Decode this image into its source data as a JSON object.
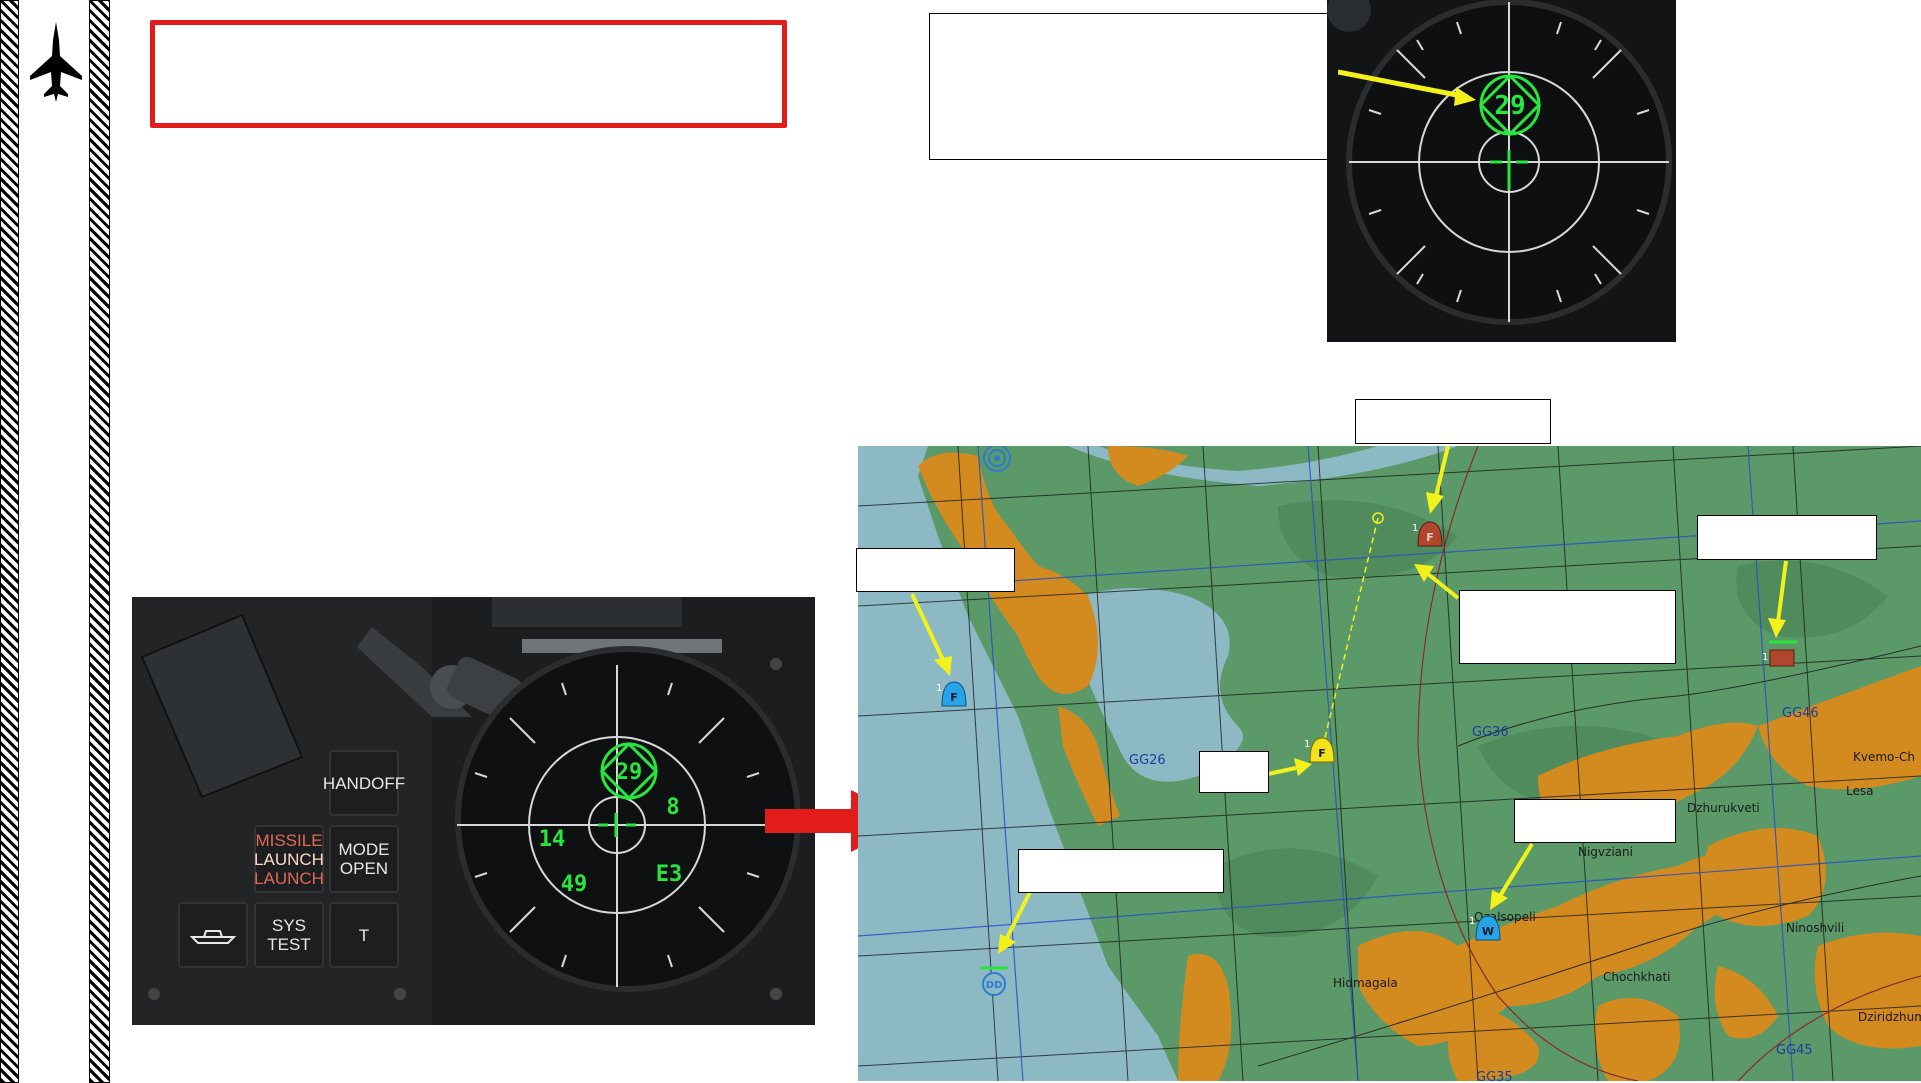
{
  "sidebar": {
    "logo_icon": "jet-silhouette-icon"
  },
  "panel": {
    "buttons": {
      "handoff": "HANDOFF",
      "missile_launch_line1": "MISSILE",
      "missile_launch_line2": "LAUNCH",
      "missile_launch_line3": "LAUNCH",
      "mode_line1": "MODE",
      "mode_line2": "OPEN",
      "ship_icon": "ship-icon",
      "sys_test": "SYS TEST",
      "t": "T"
    },
    "rwr_symbols": {
      "center_threat": "29",
      "s8": "8",
      "s14": "14",
      "s49": "49",
      "sE3": "E3"
    }
  },
  "rwr_zoom": {
    "threat": "29"
  },
  "map": {
    "grid_labels": {
      "gg26": "GG26",
      "gg36": "GG36",
      "gg46": "GG46",
      "gg45": "GG45",
      "gg35": "GG35"
    },
    "towns": {
      "kvemo": "Kvemo-Ch",
      "lesa": "Lesa",
      "dzhurukveti": "Dzhurukveti",
      "nigvziani": "Nigvziani",
      "ozurgeti": "Ozalsopeli",
      "ninoshvili": "Ninoshvili",
      "hidmagala": "Hidmagala",
      "chochkhati": "Chochkhati",
      "dziridzhum": "Dziridzhum"
    },
    "markers": {
      "f_letter": "F",
      "w_letter": "W",
      "dd_letter": "DD",
      "one": "1"
    }
  },
  "colors": {
    "red_accent": "#e21b1b",
    "yellow_arrow": "#f2f21a",
    "rwr_green": "#27e63d",
    "map_land": "#5b9968",
    "map_sea": "#8cb9c4",
    "map_urban": "#d38a1f"
  }
}
